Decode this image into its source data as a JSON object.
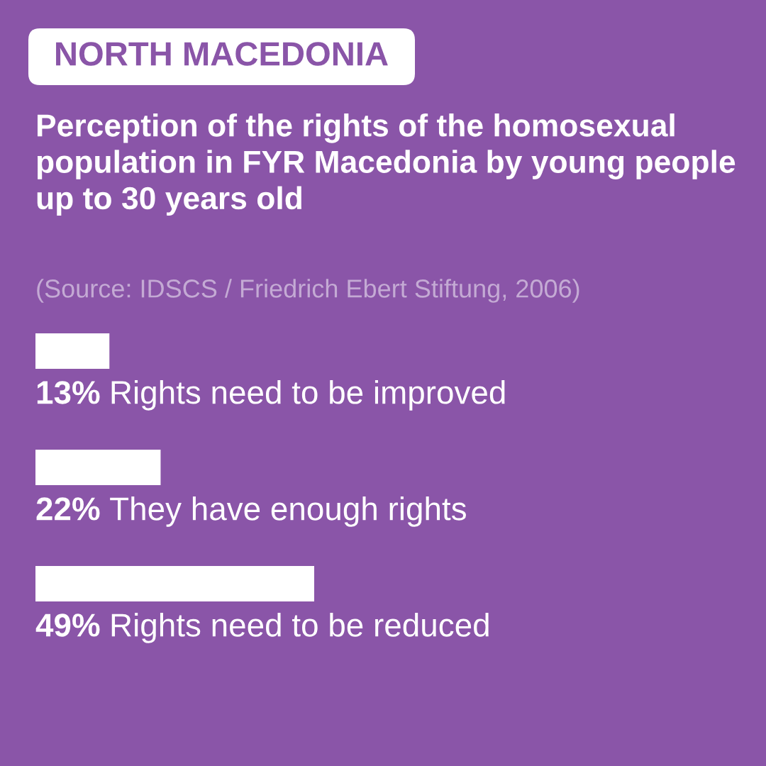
{
  "chart_data": {
    "type": "bar",
    "orientation": "horizontal",
    "title": "Perception of the rights of the homosexual population in FYR Macedonia by young people up to 30 years old",
    "annotations": [
      "NORTH MACEDONIA",
      "(Source: IDSCS / Friedrich Ebert Stiftung, 2006)"
    ],
    "categories": [
      "Rights need to be improved",
      "They have enough rights",
      "Rights need to be reduced"
    ],
    "values": [
      13,
      22,
      49
    ],
    "value_labels": [
      "13%",
      "22%",
      "49%"
    ],
    "color": "#ffffff",
    "tick_labels": false
  }
}
